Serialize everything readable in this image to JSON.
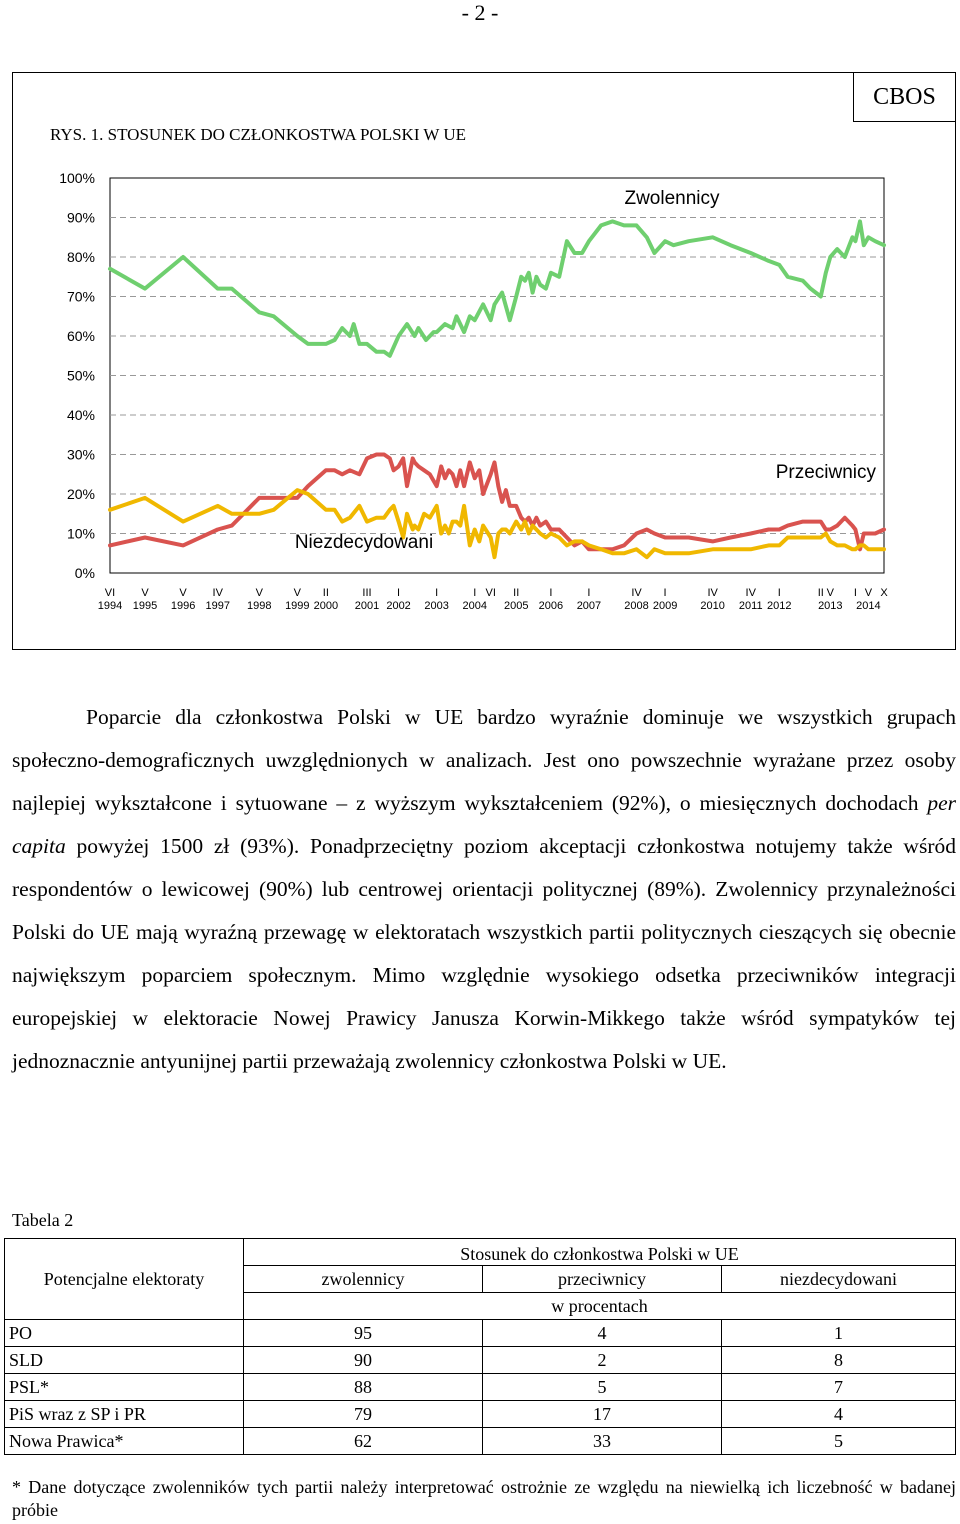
{
  "page_number": "- 2 -",
  "figure": {
    "publisher": "CBOS",
    "title": "RYS. 1. STOSUNEK DO CZŁONKOSTWA POLSKI W UE"
  },
  "chart_data": {
    "type": "line",
    "title": "RYS. 1. STOSUNEK DO CZŁONKOSTWA POLSKI W UE",
    "ylim": [
      0,
      100
    ],
    "y_ticks": [
      "0%",
      "10%",
      "20%",
      "30%",
      "40%",
      "50%",
      "60%",
      "70%",
      "80%",
      "90%",
      "100%"
    ],
    "grid": true,
    "x_labels": [
      {
        "month": "VI",
        "year": "1994",
        "t": 0
      },
      {
        "month": "V",
        "year": "1995",
        "t": 0.92
      },
      {
        "month": "V",
        "year": "1996",
        "t": 1.92
      },
      {
        "month": "IV",
        "year": "1997",
        "t": 2.83
      },
      {
        "month": "V",
        "year": "1998",
        "t": 3.92
      },
      {
        "month": "V",
        "year": "1999",
        "t": 4.92
      },
      {
        "month": "II",
        "year": "2000",
        "t": 5.67
      },
      {
        "month": "III",
        "year": "2001",
        "t": 6.75
      },
      {
        "month": "I",
        "year": "2002",
        "t": 7.58
      },
      {
        "month": "I",
        "year": "2003",
        "t": 8.58
      },
      {
        "month": "I",
        "year": "2004",
        "t": 9.58
      },
      {
        "month": "VI",
        "year": "",
        "t": 10.0
      },
      {
        "month": "II",
        "year": "2005",
        "t": 10.67
      },
      {
        "month": "I",
        "year": "2006",
        "t": 11.58
      },
      {
        "month": "I",
        "year": "2007",
        "t": 12.58
      },
      {
        "month": "IV",
        "year": "2008",
        "t": 13.83
      },
      {
        "month": "I",
        "year": "2009",
        "t": 14.58
      },
      {
        "month": "IV",
        "year": "2010",
        "t": 15.83
      },
      {
        "month": "IV",
        "year": "2011",
        "t": 16.83
      },
      {
        "month": "I",
        "year": "2012",
        "t": 17.58
      },
      {
        "month": "II",
        "year": "",
        "t": 18.67
      },
      {
        "month": "V",
        "year": "2013",
        "t": 18.92
      },
      {
        "month": "I",
        "year": "",
        "t": 19.58
      },
      {
        "month": "V",
        "year": "2014",
        "t": 19.92
      },
      {
        "month": "X",
        "year": "",
        "t": 20.33
      }
    ],
    "series": [
      {
        "name": "Zwolennicy",
        "color": "#6fcf6f",
        "points": [
          [
            0,
            77
          ],
          [
            0.92,
            72
          ],
          [
            1.92,
            80
          ],
          [
            2.83,
            72
          ],
          [
            3.2,
            72
          ],
          [
            3.92,
            66
          ],
          [
            4.3,
            65
          ],
          [
            4.92,
            60
          ],
          [
            5.2,
            58
          ],
          [
            5.67,
            58
          ],
          [
            5.9,
            59
          ],
          [
            6.1,
            62
          ],
          [
            6.3,
            60
          ],
          [
            6.4,
            63
          ],
          [
            6.55,
            58
          ],
          [
            6.75,
            58
          ],
          [
            7.0,
            56
          ],
          [
            7.2,
            56
          ],
          [
            7.35,
            55
          ],
          [
            7.58,
            60
          ],
          [
            7.8,
            63
          ],
          [
            8.0,
            60
          ],
          [
            8.1,
            62
          ],
          [
            8.3,
            59
          ],
          [
            8.5,
            61
          ],
          [
            8.58,
            61
          ],
          [
            8.8,
            63
          ],
          [
            9.0,
            62
          ],
          [
            9.1,
            65
          ],
          [
            9.3,
            61
          ],
          [
            9.45,
            65
          ],
          [
            9.58,
            64
          ],
          [
            9.8,
            68
          ],
          [
            10.0,
            64
          ],
          [
            10.1,
            68
          ],
          [
            10.3,
            71
          ],
          [
            10.5,
            64
          ],
          [
            10.67,
            70
          ],
          [
            10.8,
            75
          ],
          [
            10.9,
            74
          ],
          [
            11.0,
            76
          ],
          [
            11.1,
            71
          ],
          [
            11.2,
            75
          ],
          [
            11.3,
            73
          ],
          [
            11.45,
            72
          ],
          [
            11.58,
            76
          ],
          [
            11.8,
            75
          ],
          [
            12.0,
            84
          ],
          [
            12.2,
            81
          ],
          [
            12.4,
            81
          ],
          [
            12.58,
            84
          ],
          [
            12.9,
            88
          ],
          [
            13.2,
            89
          ],
          [
            13.5,
            88
          ],
          [
            13.83,
            88
          ],
          [
            14.1,
            85
          ],
          [
            14.3,
            81
          ],
          [
            14.58,
            84
          ],
          [
            14.8,
            83
          ],
          [
            15.2,
            84
          ],
          [
            15.83,
            85
          ],
          [
            16.3,
            83
          ],
          [
            16.83,
            81
          ],
          [
            17.3,
            79
          ],
          [
            17.58,
            78
          ],
          [
            17.8,
            75
          ],
          [
            18.2,
            74
          ],
          [
            18.4,
            72
          ],
          [
            18.67,
            70
          ],
          [
            18.8,
            76
          ],
          [
            18.92,
            80
          ],
          [
            19.1,
            82
          ],
          [
            19.3,
            80
          ],
          [
            19.5,
            85
          ],
          [
            19.58,
            84
          ],
          [
            19.7,
            89
          ],
          [
            19.8,
            83
          ],
          [
            19.92,
            85
          ],
          [
            20.1,
            84
          ],
          [
            20.33,
            83
          ]
        ]
      },
      {
        "name": "Przeciwnicy",
        "color": "#d9534f",
        "points": [
          [
            0,
            7
          ],
          [
            0.92,
            9
          ],
          [
            1.92,
            7
          ],
          [
            2.83,
            11
          ],
          [
            3.2,
            12
          ],
          [
            3.92,
            19
          ],
          [
            4.3,
            19
          ],
          [
            4.92,
            19
          ],
          [
            5.2,
            22
          ],
          [
            5.67,
            26
          ],
          [
            5.9,
            26
          ],
          [
            6.1,
            25
          ],
          [
            6.3,
            26
          ],
          [
            6.55,
            25
          ],
          [
            6.75,
            29
          ],
          [
            7.0,
            30
          ],
          [
            7.2,
            30
          ],
          [
            7.35,
            29
          ],
          [
            7.45,
            26
          ],
          [
            7.58,
            27
          ],
          [
            7.7,
            29
          ],
          [
            7.8,
            22
          ],
          [
            7.95,
            29
          ],
          [
            8.0,
            28
          ],
          [
            8.1,
            27
          ],
          [
            8.25,
            26
          ],
          [
            8.4,
            25
          ],
          [
            8.58,
            22
          ],
          [
            8.7,
            27
          ],
          [
            8.8,
            24
          ],
          [
            8.9,
            26
          ],
          [
            9.0,
            25
          ],
          [
            9.1,
            22
          ],
          [
            9.2,
            26
          ],
          [
            9.3,
            22
          ],
          [
            9.45,
            28
          ],
          [
            9.58,
            24
          ],
          [
            9.7,
            26
          ],
          [
            9.8,
            20
          ],
          [
            10.0,
            25
          ],
          [
            10.1,
            28
          ],
          [
            10.2,
            22
          ],
          [
            10.3,
            18
          ],
          [
            10.4,
            21
          ],
          [
            10.5,
            17
          ],
          [
            10.67,
            17
          ],
          [
            10.8,
            14
          ],
          [
            10.9,
            13
          ],
          [
            11.0,
            14
          ],
          [
            11.1,
            12
          ],
          [
            11.2,
            14
          ],
          [
            11.3,
            12
          ],
          [
            11.45,
            13
          ],
          [
            11.58,
            11
          ],
          [
            11.8,
            11
          ],
          [
            12.0,
            9
          ],
          [
            12.2,
            7
          ],
          [
            12.4,
            8
          ],
          [
            12.58,
            6
          ],
          [
            12.9,
            6
          ],
          [
            13.2,
            6
          ],
          [
            13.5,
            7
          ],
          [
            13.83,
            10
          ],
          [
            14.1,
            11
          ],
          [
            14.3,
            10
          ],
          [
            14.58,
            9
          ],
          [
            14.8,
            9
          ],
          [
            15.2,
            9
          ],
          [
            15.83,
            8
          ],
          [
            16.3,
            9
          ],
          [
            16.83,
            10
          ],
          [
            17.3,
            11
          ],
          [
            17.58,
            11
          ],
          [
            17.8,
            12
          ],
          [
            18.2,
            13
          ],
          [
            18.4,
            13
          ],
          [
            18.67,
            13
          ],
          [
            18.8,
            11
          ],
          [
            18.92,
            11
          ],
          [
            19.1,
            12
          ],
          [
            19.3,
            14
          ],
          [
            19.5,
            12
          ],
          [
            19.58,
            11
          ],
          [
            19.7,
            6
          ],
          [
            19.8,
            10
          ],
          [
            19.92,
            10
          ],
          [
            20.1,
            10
          ],
          [
            20.33,
            11
          ]
        ]
      },
      {
        "name": "Niezdecydowani",
        "color": "#f0b800",
        "points": [
          [
            0,
            16
          ],
          [
            0.92,
            19
          ],
          [
            1.92,
            13
          ],
          [
            2.83,
            17
          ],
          [
            3.2,
            15
          ],
          [
            3.92,
            15
          ],
          [
            4.3,
            16
          ],
          [
            4.92,
            21
          ],
          [
            5.2,
            20
          ],
          [
            5.67,
            16
          ],
          [
            5.9,
            16
          ],
          [
            6.1,
            13
          ],
          [
            6.3,
            14
          ],
          [
            6.55,
            17
          ],
          [
            6.75,
            13
          ],
          [
            7.0,
            14
          ],
          [
            7.2,
            14
          ],
          [
            7.35,
            16
          ],
          [
            7.45,
            17
          ],
          [
            7.58,
            13
          ],
          [
            7.7,
            9
          ],
          [
            7.8,
            15
          ],
          [
            7.95,
            11
          ],
          [
            8.0,
            12
          ],
          [
            8.1,
            11
          ],
          [
            8.25,
            15
          ],
          [
            8.4,
            14
          ],
          [
            8.58,
            17
          ],
          [
            8.7,
            10
          ],
          [
            8.8,
            12
          ],
          [
            8.9,
            10
          ],
          [
            9.0,
            13
          ],
          [
            9.1,
            13
          ],
          [
            9.2,
            12
          ],
          [
            9.3,
            17
          ],
          [
            9.45,
            7
          ],
          [
            9.58,
            11
          ],
          [
            9.7,
            8
          ],
          [
            9.8,
            12
          ],
          [
            10.0,
            9
          ],
          [
            10.1,
            4
          ],
          [
            10.2,
            10
          ],
          [
            10.3,
            11
          ],
          [
            10.4,
            11
          ],
          [
            10.5,
            10
          ],
          [
            10.67,
            13
          ],
          [
            10.8,
            11
          ],
          [
            10.9,
            13
          ],
          [
            11.0,
            10
          ],
          [
            11.1,
            12
          ],
          [
            11.2,
            11
          ],
          [
            11.3,
            10
          ],
          [
            11.45,
            9
          ],
          [
            11.58,
            10
          ],
          [
            11.8,
            9
          ],
          [
            12.0,
            7
          ],
          [
            12.2,
            8
          ],
          [
            12.4,
            8
          ],
          [
            12.58,
            7
          ],
          [
            12.9,
            6
          ],
          [
            13.2,
            5
          ],
          [
            13.5,
            5
          ],
          [
            13.83,
            6
          ],
          [
            14.1,
            4
          ],
          [
            14.3,
            6
          ],
          [
            14.58,
            5
          ],
          [
            14.8,
            5
          ],
          [
            15.2,
            5
          ],
          [
            15.83,
            6
          ],
          [
            16.3,
            6
          ],
          [
            16.83,
            6
          ],
          [
            17.3,
            7
          ],
          [
            17.58,
            7
          ],
          [
            17.8,
            9
          ],
          [
            18.2,
            9
          ],
          [
            18.4,
            9
          ],
          [
            18.67,
            9
          ],
          [
            18.8,
            10
          ],
          [
            18.92,
            8
          ],
          [
            19.1,
            7
          ],
          [
            19.3,
            7
          ],
          [
            19.5,
            6
          ],
          [
            19.58,
            6
          ],
          [
            19.7,
            7
          ],
          [
            19.8,
            7
          ],
          [
            19.92,
            6
          ],
          [
            20.1,
            6
          ],
          [
            20.33,
            6
          ]
        ]
      }
    ],
    "annotations": [
      "Zwolennicy",
      "Przeciwnicy",
      "Niezdecydowani"
    ]
  },
  "paragraph": {
    "part1": "Poparcie dla członkostwa Polski w UE bardzo wyraźnie dominuje we wszystkich grupach społeczno-demograficznych uwzględnionych w analizach. Jest ono powszechnie wyrażane przez osoby najlepiej wykształcone i sytuowane – z wyższym wykształceniem (92%), o miesięcznych dochodach ",
    "italic": "per capita",
    "part2": " powyżej 1500 zł (93%). Ponadprzeciętny poziom akceptacji członkostwa notujemy także wśród respondentów o lewicowej (90%) lub centrowej orientacji politycznej (89%). Zwolennicy przynależności Polski do UE mają wyraźną przewagę w elektoratach wszystkich partii politycznych cieszących się obecnie największym poparciem społecznym. Mimo względnie wysokiego odsetka przeciwników integracji europejskiej w elektoracie Nowej Prawicy Janusza Korwin-Mikkego także wśród sympatyków tej jednoznacznie antyunijnej partii przeważają zwolennicy członkostwa Polski w UE."
  },
  "table": {
    "caption": "Tabela 2",
    "row_header": "Potencjalne elektoraty",
    "group_header": "Stosunek do członkostwa Polski w UE",
    "columns": [
      "zwolennicy",
      "przeciwnicy",
      "niezdecydowani"
    ],
    "unit": "w procentach",
    "rows": [
      {
        "label": "PO",
        "values": [
          "95",
          "4",
          "1"
        ]
      },
      {
        "label": "SLD",
        "values": [
          "90",
          "2",
          "8"
        ]
      },
      {
        "label": "PSL*",
        "values": [
          "88",
          "5",
          "7"
        ]
      },
      {
        "label": "PiS wraz z SP i PR",
        "values": [
          "79",
          "17",
          "4"
        ]
      },
      {
        "label": "Nowa Prawica*",
        "values": [
          "62",
          "33",
          "5"
        ]
      }
    ]
  },
  "footnote": "* Dane dotyczące zwolenników tych partii należy interpretować ostrożnie ze względu na niewielką ich liczebność w badanej próbie"
}
